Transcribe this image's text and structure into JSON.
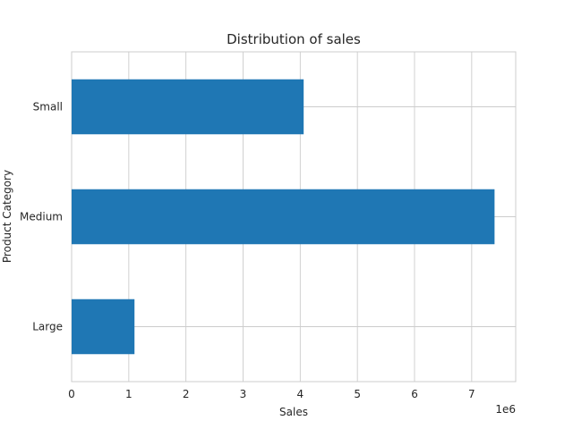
{
  "chart_data": {
    "type": "bar",
    "orientation": "horizontal",
    "title": "Distribution of sales",
    "xlabel": "Sales",
    "ylabel": "Product Category",
    "x_scale_label": "1e6",
    "categories": [
      "Large",
      "Medium",
      "Small"
    ],
    "values": [
      1100000,
      7400000,
      4060000
    ],
    "xlim": [
      0,
      7770000
    ],
    "xticks": [
      0,
      1000000,
      2000000,
      3000000,
      4000000,
      5000000,
      6000000,
      7000000
    ],
    "xtick_labels": [
      "0",
      "1",
      "2",
      "3",
      "4",
      "5",
      "6",
      "7"
    ],
    "grid": true,
    "bar_color": "#1f77b4"
  }
}
